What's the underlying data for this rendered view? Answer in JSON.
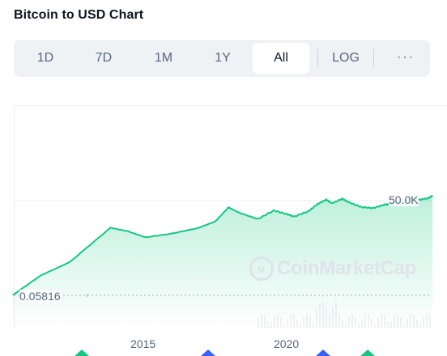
{
  "title": "Bitcoin to USD Chart",
  "range_tabs": [
    {
      "label": "1D",
      "active": false
    },
    {
      "label": "7D",
      "active": false
    },
    {
      "label": "1M",
      "active": false
    },
    {
      "label": "1Y",
      "active": false
    },
    {
      "label": "All",
      "active": true
    }
  ],
  "scale_toggle": "LOG",
  "more_label": "···",
  "chart": {
    "price_axis_label": "50.0K",
    "start_price_label": "0.05816",
    "x_ticks": [
      "2015",
      "2020"
    ],
    "watermark": "CoinMarketCap",
    "line_color": "#16c784",
    "marker_colors": [
      "#16c784",
      "#3861fb"
    ]
  },
  "chart_data": {
    "type": "area",
    "scale": "log",
    "x_ticks": [
      "2015",
      "2020"
    ],
    "reference_lines": [
      50000,
      0.05816
    ],
    "series": [
      {
        "x": [
          2010.55,
          2011.5,
          2012.5,
          2013.9,
          2014.5,
          2015.1,
          2016.0,
          2016.9,
          2017.5,
          2017.95,
          2018.3,
          2018.95,
          2019.5,
          2019.95,
          2020.2,
          2020.7,
          2021.0,
          2021.3,
          2021.5,
          2021.85,
          2022.1,
          2022.5,
          2022.9,
          2023.3,
          2023.5,
          2023.95,
          2024.2,
          2024.5,
          2024.8,
          2024.95
        ],
        "y": [
          0.06,
          1,
          7,
          1000,
          600,
          250,
          430,
          950,
          2500,
          19000,
          9000,
          3500,
          12000,
          7200,
          5000,
          11000,
          30000,
          58000,
          34000,
          66000,
          38000,
          20000,
          17000,
          28000,
          30000,
          42000,
          68000,
          58000,
          70000,
          104000
        ]
      }
    ]
  }
}
